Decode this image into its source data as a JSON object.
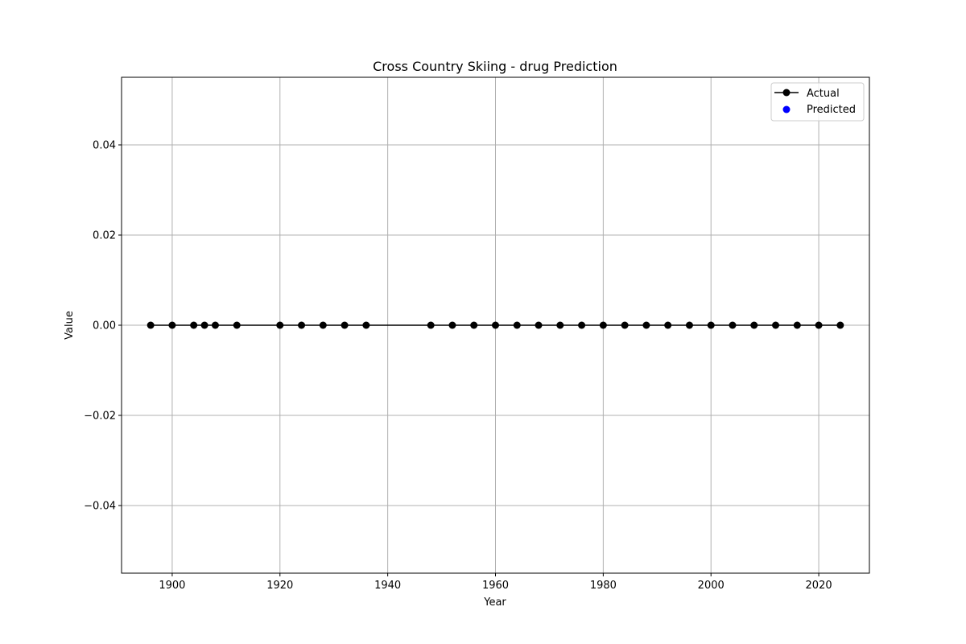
{
  "chart_data": {
    "type": "line",
    "title": "Cross Country Skiing - drug Prediction",
    "xlabel": "Year",
    "ylabel": "Value",
    "xlim": [
      1890.6,
      2029.4
    ],
    "ylim": [
      -0.055,
      0.055
    ],
    "x_ticks": [
      1900,
      1920,
      1940,
      1960,
      1980,
      2000,
      2020
    ],
    "x_tick_labels": [
      "1900",
      "1920",
      "1940",
      "1960",
      "1980",
      "2000",
      "2020"
    ],
    "y_ticks": [
      -0.04,
      -0.02,
      0.0,
      0.02,
      0.04
    ],
    "y_tick_labels": [
      "−0.04",
      "−0.02",
      "0.00",
      "0.02",
      "0.04"
    ],
    "grid": true,
    "legend_position": "top-right",
    "series": [
      {
        "name": "Actual",
        "style": "line-with-markers",
        "color": "#000000",
        "x": [
          1896,
          1900,
          1904,
          1906,
          1908,
          1912,
          1920,
          1924,
          1928,
          1932,
          1936,
          1948,
          1952,
          1956,
          1960,
          1964,
          1968,
          1972,
          1976,
          1980,
          1984,
          1988,
          1992,
          1996,
          2000,
          2004,
          2008,
          2012,
          2016,
          2020,
          2024
        ],
        "y": [
          0,
          0,
          0,
          0,
          0,
          0,
          0,
          0,
          0,
          0,
          0,
          0,
          0,
          0,
          0,
          0,
          0,
          0,
          0,
          0,
          0,
          0,
          0,
          0,
          0,
          0,
          0,
          0,
          0,
          0,
          0
        ]
      },
      {
        "name": "Predicted",
        "style": "scatter",
        "color": "#0000ff",
        "x": [],
        "y": []
      }
    ]
  }
}
